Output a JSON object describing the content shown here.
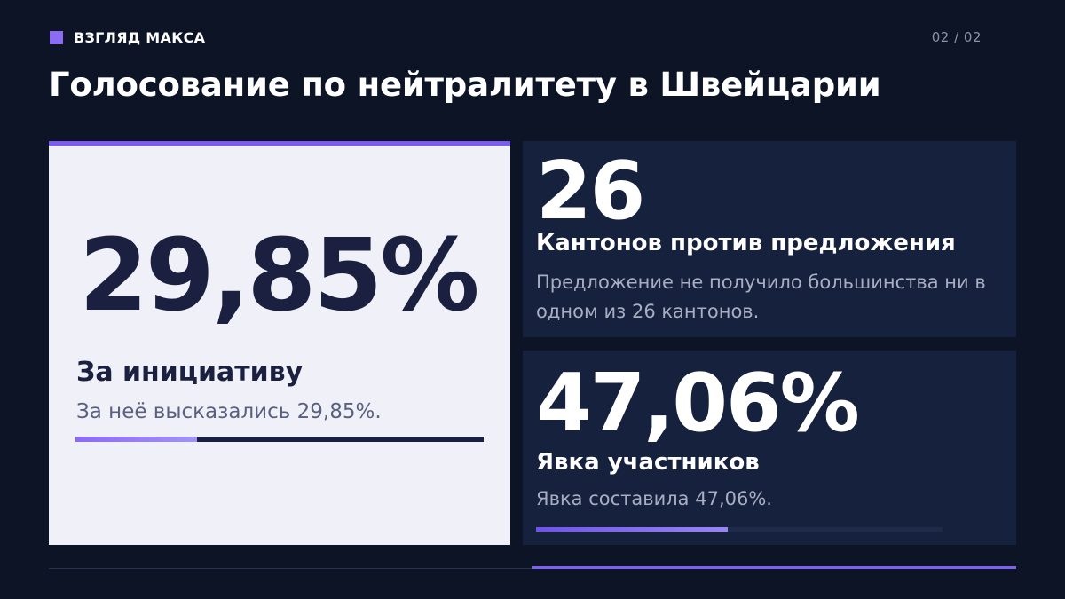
{
  "header": {
    "brand_label": "ВЗГЛЯД МАКСА",
    "page_indicator": "02 / 02",
    "title": "Голосование по нейтралитету в Швейцарии"
  },
  "initiative": {
    "value": "29,85%",
    "label": "За инициативу",
    "description": "За неё высказались 29,85%.",
    "progress_percent": 29.85
  },
  "cantons": {
    "value": "26",
    "label": "Кантонов против предложения",
    "description": "Предложение не получило большинства ни в одном из 26 кантонов."
  },
  "turnout": {
    "value": "47,06%",
    "label": "Явка участников",
    "description": "Явка составила 47,06%.",
    "progress_percent": 47.06
  },
  "colors": {
    "background": "#0d1426",
    "accent": "#7b5cf0",
    "light_card": "#f0f1f8",
    "dark_card": "#16213d",
    "dark_text": "#1b2040"
  }
}
